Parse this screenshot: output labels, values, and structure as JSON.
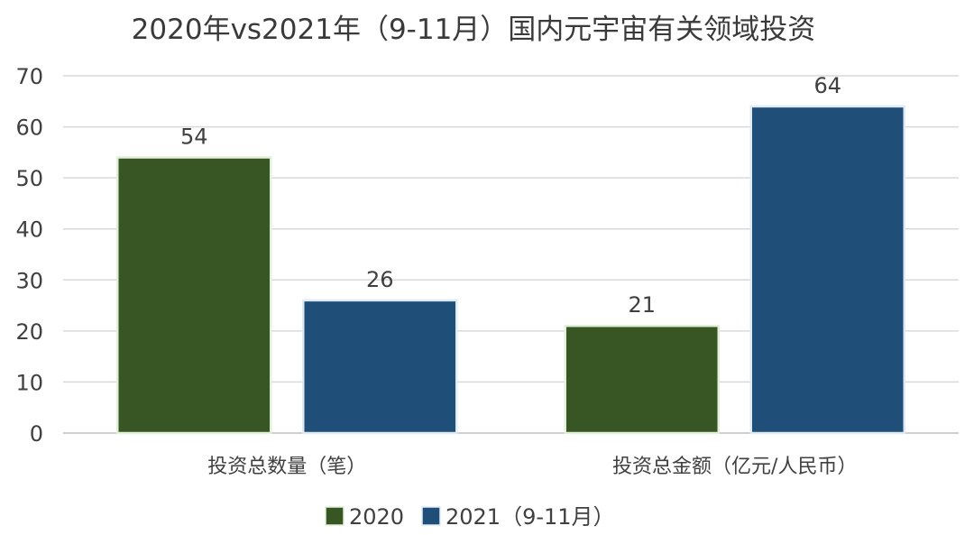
{
  "chart_data": {
    "type": "bar",
    "title": "2020年vs2021年（9-11月）国内元宇宙有关领域投资",
    "categories": [
      "投资总数量（笔）",
      "投资总金额（亿元/人民币）"
    ],
    "series": [
      {
        "name": "2020",
        "values": [
          54,
          21
        ],
        "color": "#375623",
        "border": "#e2efd9"
      },
      {
        "name": "2021（9-11月）",
        "values": [
          26,
          64
        ],
        "color": "#1f4e79",
        "border": "#deebf7"
      }
    ],
    "ylim": [
      0,
      70
    ],
    "yticks": [
      0,
      10,
      20,
      30,
      40,
      50,
      60,
      70
    ],
    "grid": true,
    "legend": "bottom",
    "data_labels": true
  }
}
